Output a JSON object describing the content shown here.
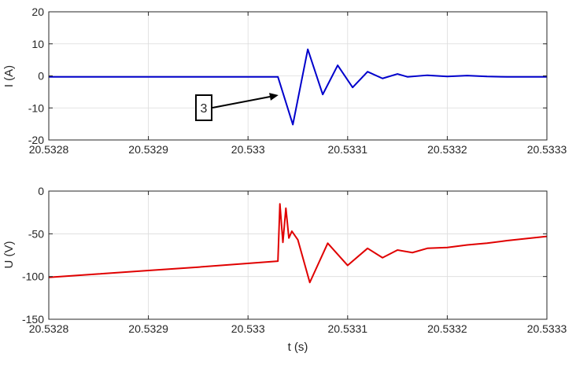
{
  "chart_data": [
    {
      "type": "line",
      "ylabel": "I (A)",
      "xlabel": "",
      "xlim": [
        20.5328,
        20.5333
      ],
      "ylim": [
        -20,
        20
      ],
      "xticks": [
        20.5328,
        20.5329,
        20.533,
        20.5331,
        20.5332,
        20.5333
      ],
      "xtick_labels": [
        "20.5328",
        "20.5329",
        "20.533",
        "20.5331",
        "20.5332",
        "20.5333"
      ],
      "yticks": [
        20,
        10,
        0,
        -10,
        -20
      ],
      "ytick_labels": [
        "20",
        "10",
        "0",
        "-10",
        "-20"
      ],
      "grid": true,
      "series": [
        {
          "color": "#0000cc",
          "x": [
            20.5328,
            20.53285,
            20.5329,
            20.53295,
            20.53303,
            20.533045,
            20.53306,
            20.533075,
            20.53309,
            20.533105,
            20.53312,
            20.533135,
            20.53315,
            20.53316,
            20.53318,
            20.5332,
            20.53322,
            20.53324,
            20.53326,
            20.53328,
            20.5333
          ],
          "y": [
            -0.3,
            -0.3,
            -0.3,
            -0.3,
            -0.3,
            -15.2,
            8.3,
            -5.8,
            3.3,
            -3.6,
            1.3,
            -0.8,
            0.6,
            -0.3,
            0.2,
            -0.2,
            0.1,
            -0.2,
            -0.3,
            -0.3,
            -0.3
          ]
        }
      ],
      "annotations": [
        {
          "text": "3",
          "target_x": 20.5330305,
          "target_y": -6
        }
      ]
    },
    {
      "type": "line",
      "ylabel": "U (V)",
      "xlabel": "t (s)",
      "xlim": [
        20.5328,
        20.5333
      ],
      "ylim": [
        -150,
        0
      ],
      "xticks": [
        20.5328,
        20.5329,
        20.533,
        20.5331,
        20.5332,
        20.5333
      ],
      "xtick_labels": [
        "20.5328",
        "20.5329",
        "20.533",
        "20.5331",
        "20.5332",
        "20.5333"
      ],
      "yticks": [
        0,
        -50,
        -100,
        -150
      ],
      "ytick_labels": [
        "0",
        "-50",
        "-100",
        "-150"
      ],
      "grid": true,
      "series": [
        {
          "color": "#e00000",
          "x": [
            20.5328,
            20.53285,
            20.5329,
            20.53295,
            20.53303,
            20.533032,
            20.533035,
            20.533038,
            20.533041,
            20.533044,
            20.53305,
            20.533062,
            20.53308,
            20.5331,
            20.53312,
            20.533135,
            20.53315,
            20.533165,
            20.53318,
            20.5332,
            20.53322,
            20.53324,
            20.53326,
            20.5333
          ],
          "y": [
            -101,
            -97,
            -93,
            -89,
            -82,
            -15,
            -60,
            -20,
            -55,
            -47,
            -57,
            -107,
            -61,
            -87,
            -67,
            -78,
            -69,
            -72,
            -67,
            -66,
            -63,
            -61,
            -58,
            -53
          ]
        }
      ]
    }
  ]
}
